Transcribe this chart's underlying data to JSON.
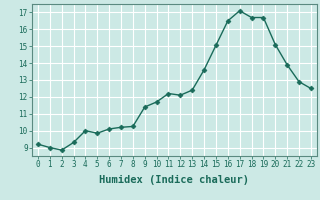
{
  "x": [
    0,
    1,
    2,
    3,
    4,
    5,
    6,
    7,
    8,
    9,
    10,
    11,
    12,
    13,
    14,
    15,
    16,
    17,
    18,
    19,
    20,
    21,
    22,
    23
  ],
  "y": [
    9.2,
    9.0,
    8.85,
    9.3,
    10.0,
    9.85,
    10.1,
    10.2,
    10.25,
    11.4,
    11.7,
    12.2,
    12.1,
    12.4,
    13.6,
    15.05,
    16.5,
    17.1,
    16.7,
    16.7,
    15.1,
    13.9,
    12.9,
    12.5
  ],
  "line_color": "#1a6b5a",
  "marker": "D",
  "marker_size": 2.5,
  "bg_color": "#cce9e5",
  "grid_color": "#ffffff",
  "xlabel": "Humidex (Indice chaleur)",
  "ylabel": "",
  "xlim": [
    -0.5,
    23.5
  ],
  "ylim": [
    8.5,
    17.5
  ],
  "yticks": [
    9,
    10,
    11,
    12,
    13,
    14,
    15,
    16,
    17
  ],
  "xticks": [
    0,
    1,
    2,
    3,
    4,
    5,
    6,
    7,
    8,
    9,
    10,
    11,
    12,
    13,
    14,
    15,
    16,
    17,
    18,
    19,
    20,
    21,
    22,
    23
  ],
  "tick_color": "#1a6b5a",
  "axis_color": "#5a8a80",
  "xlabel_fontsize": 7.5,
  "tick_fontsize": 5.5,
  "linewidth": 1.0
}
